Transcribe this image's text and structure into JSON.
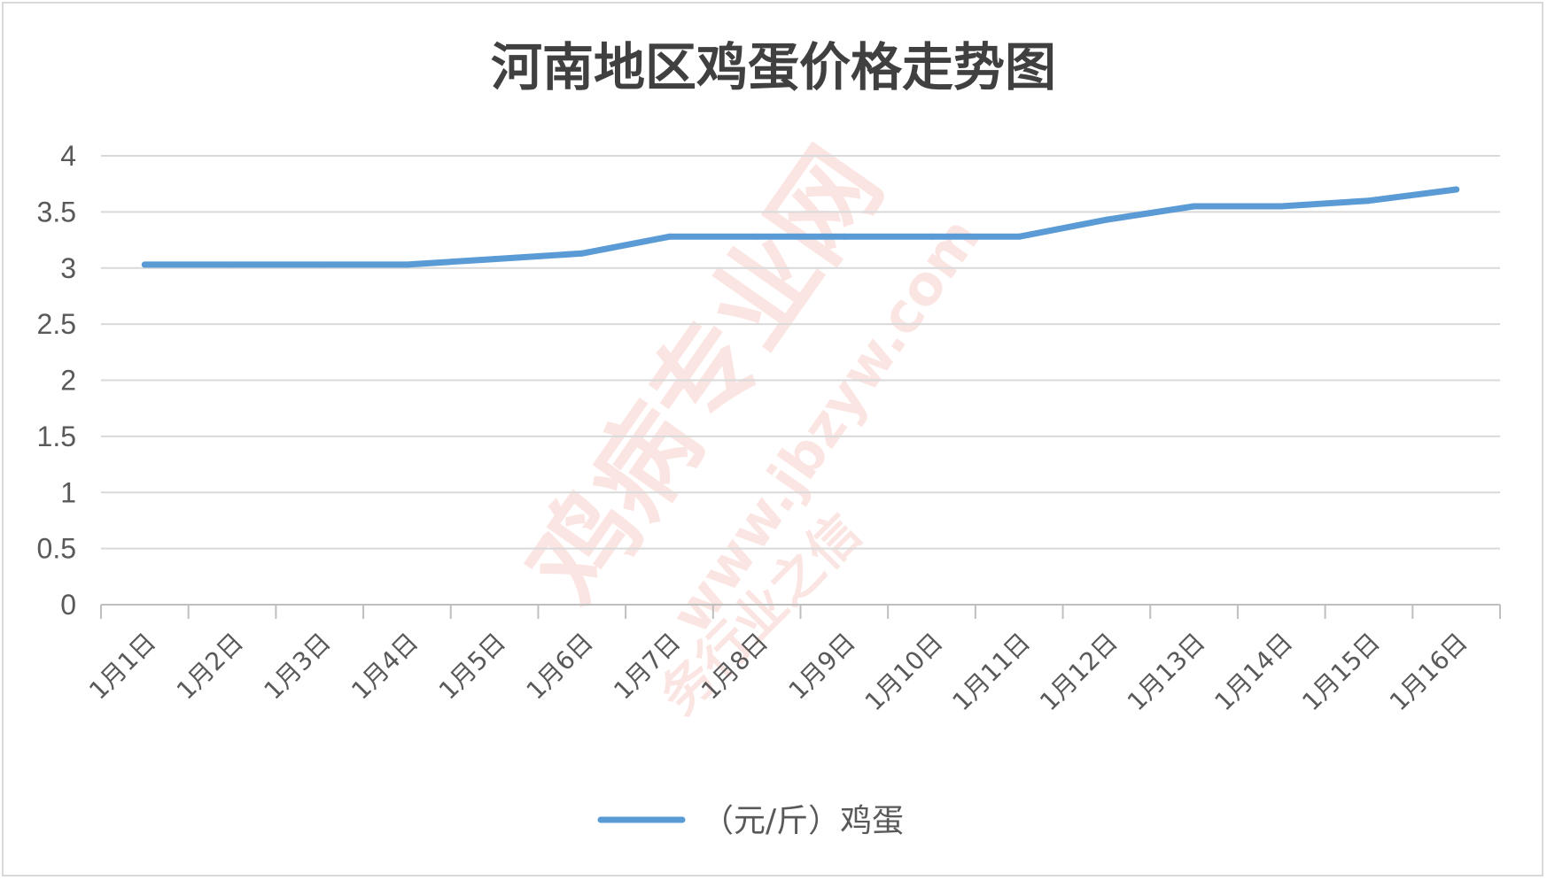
{
  "chart_data": {
    "type": "line",
    "title": "河南地区鸡蛋价格走势图",
    "xlabel": "",
    "ylabel": "",
    "categories": [
      "1月1日",
      "1月2日",
      "1月3日",
      "1月4日",
      "1月5日",
      "1月6日",
      "1月7日",
      "1月8日",
      "1月9日",
      "1月10日",
      "1月11日",
      "1月12日",
      "1月13日",
      "1月14日",
      "1月15日",
      "1月16日"
    ],
    "y_ticks": [
      "0",
      "0.5",
      "1",
      "1.5",
      "2",
      "2.5",
      "3",
      "3.5",
      "4"
    ],
    "ylim": [
      0,
      4
    ],
    "grid": true,
    "legend_position": "bottom",
    "series": [
      {
        "name": "（元/斤）鸡蛋",
        "color": "#5b9bd5",
        "values": [
          3.03,
          3.03,
          3.03,
          3.03,
          3.08,
          3.13,
          3.28,
          3.28,
          3.28,
          3.28,
          3.28,
          3.43,
          3.55,
          3.55,
          3.6,
          3.7
        ]
      }
    ]
  },
  "watermark": {
    "main": "鸡病专业网",
    "url": "www.jbzyw.com",
    "slogan": "务行业之信"
  }
}
